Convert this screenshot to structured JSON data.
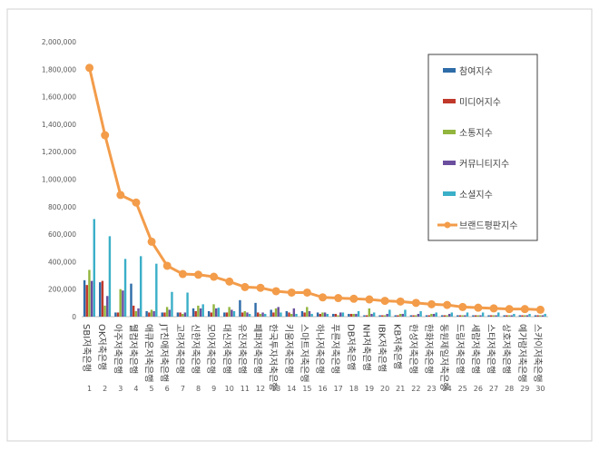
{
  "chart_data": {
    "type": "bar",
    "title": "",
    "xlabel": "",
    "ylabel": "",
    "ylim": [
      0,
      2000000
    ],
    "y_ticks": [
      "0",
      "200,000",
      "400,000",
      "600,000",
      "800,000",
      "1,000,000",
      "1,200,000",
      "1,400,000",
      "1,600,000",
      "1,800,000",
      "2,000,000"
    ],
    "grid": false,
    "legend_position": "right",
    "categories": [
      "SBI저축은행",
      "OK저축은행",
      "아주저축은행",
      "웰컴저축은행",
      "애큐온저축은행",
      "JT친애저축은행",
      "고려저축은행",
      "신한저축은행",
      "모아저축은행",
      "대신저축은행",
      "유진저축은행",
      "페퍼저축은행",
      "한국투자저축은행",
      "키움저축은행",
      "스마트저축은행",
      "하나저축은행",
      "푸른저축은행",
      "DB저축은행",
      "NH저축은행",
      "IBK저축은행",
      "KB저축은행",
      "한성저축은행",
      "한화저축은행",
      "동원제일저축은행",
      "드림저축은행",
      "세람저축은행",
      "스타저축은행",
      "상호저축은행",
      "예가람저축은행",
      "스카이저축은행"
    ],
    "ranks": [
      "1",
      "2",
      "3",
      "4",
      "5",
      "6",
      "7",
      "8",
      "9",
      "10",
      "11",
      "12",
      "13",
      "14",
      "15",
      "16",
      "17",
      "18",
      "19",
      "20",
      "21",
      "22",
      "23",
      "24",
      "25",
      "26",
      "27",
      "28",
      "29",
      "30"
    ],
    "series": [
      {
        "name": "참여지수",
        "color": "#2E6CA8",
        "kind": "bar",
        "values": [
          265000,
          250000,
          30000,
          240000,
          40000,
          30000,
          30000,
          60000,
          40000,
          30000,
          120000,
          100000,
          50000,
          40000,
          40000,
          30000,
          20000,
          20000,
          10000,
          10000,
          10000,
          10000,
          10000,
          10000,
          10000,
          10000,
          10000,
          10000,
          10000,
          10000
        ]
      },
      {
        "name": "미디어지수",
        "color": "#C0392B",
        "kind": "bar",
        "values": [
          230000,
          260000,
          30000,
          80000,
          30000,
          30000,
          30000,
          40000,
          30000,
          30000,
          30000,
          30000,
          30000,
          30000,
          30000,
          20000,
          20000,
          20000,
          10000,
          10000,
          10000,
          10000,
          10000,
          10000,
          10000,
          10000,
          10000,
          10000,
          10000,
          10000
        ]
      },
      {
        "name": "소통지수",
        "color": "#92B53E",
        "kind": "bar",
        "values": [
          340000,
          80000,
          200000,
          40000,
          50000,
          70000,
          20000,
          80000,
          90000,
          70000,
          40000,
          20000,
          60000,
          20000,
          70000,
          30000,
          10000,
          20000,
          60000,
          10000,
          20000,
          10000,
          20000,
          10000,
          10000,
          10000,
          10000,
          10000,
          10000,
          10000
        ]
      },
      {
        "name": "커뮤니티지수",
        "color": "#6B4F9E",
        "kind": "bar",
        "values": [
          260000,
          150000,
          190000,
          60000,
          40000,
          50000,
          30000,
          60000,
          60000,
          50000,
          30000,
          30000,
          70000,
          60000,
          40000,
          30000,
          30000,
          20000,
          20000,
          20000,
          20000,
          20000,
          20000,
          20000,
          10000,
          10000,
          10000,
          10000,
          10000,
          10000
        ]
      },
      {
        "name": "소셜지수",
        "color": "#3BAFC8",
        "kind": "bar",
        "values": [
          710000,
          585000,
          420000,
          440000,
          385000,
          180000,
          175000,
          90000,
          65000,
          40000,
          20000,
          20000,
          30000,
          20000,
          20000,
          20000,
          30000,
          40000,
          30000,
          50000,
          50000,
          40000,
          30000,
          30000,
          30000,
          30000,
          30000,
          20000,
          20000,
          20000
        ]
      },
      {
        "name": "브랜드평판지수",
        "color": "#F39C4A",
        "kind": "line",
        "values": [
          1810000,
          1320000,
          885000,
          830000,
          545000,
          370000,
          310000,
          305000,
          290000,
          255000,
          215000,
          210000,
          185000,
          175000,
          175000,
          140000,
          135000,
          130000,
          125000,
          115000,
          110000,
          100000,
          90000,
          85000,
          70000,
          65000,
          60000,
          55000,
          55000,
          50000
        ]
      }
    ]
  }
}
